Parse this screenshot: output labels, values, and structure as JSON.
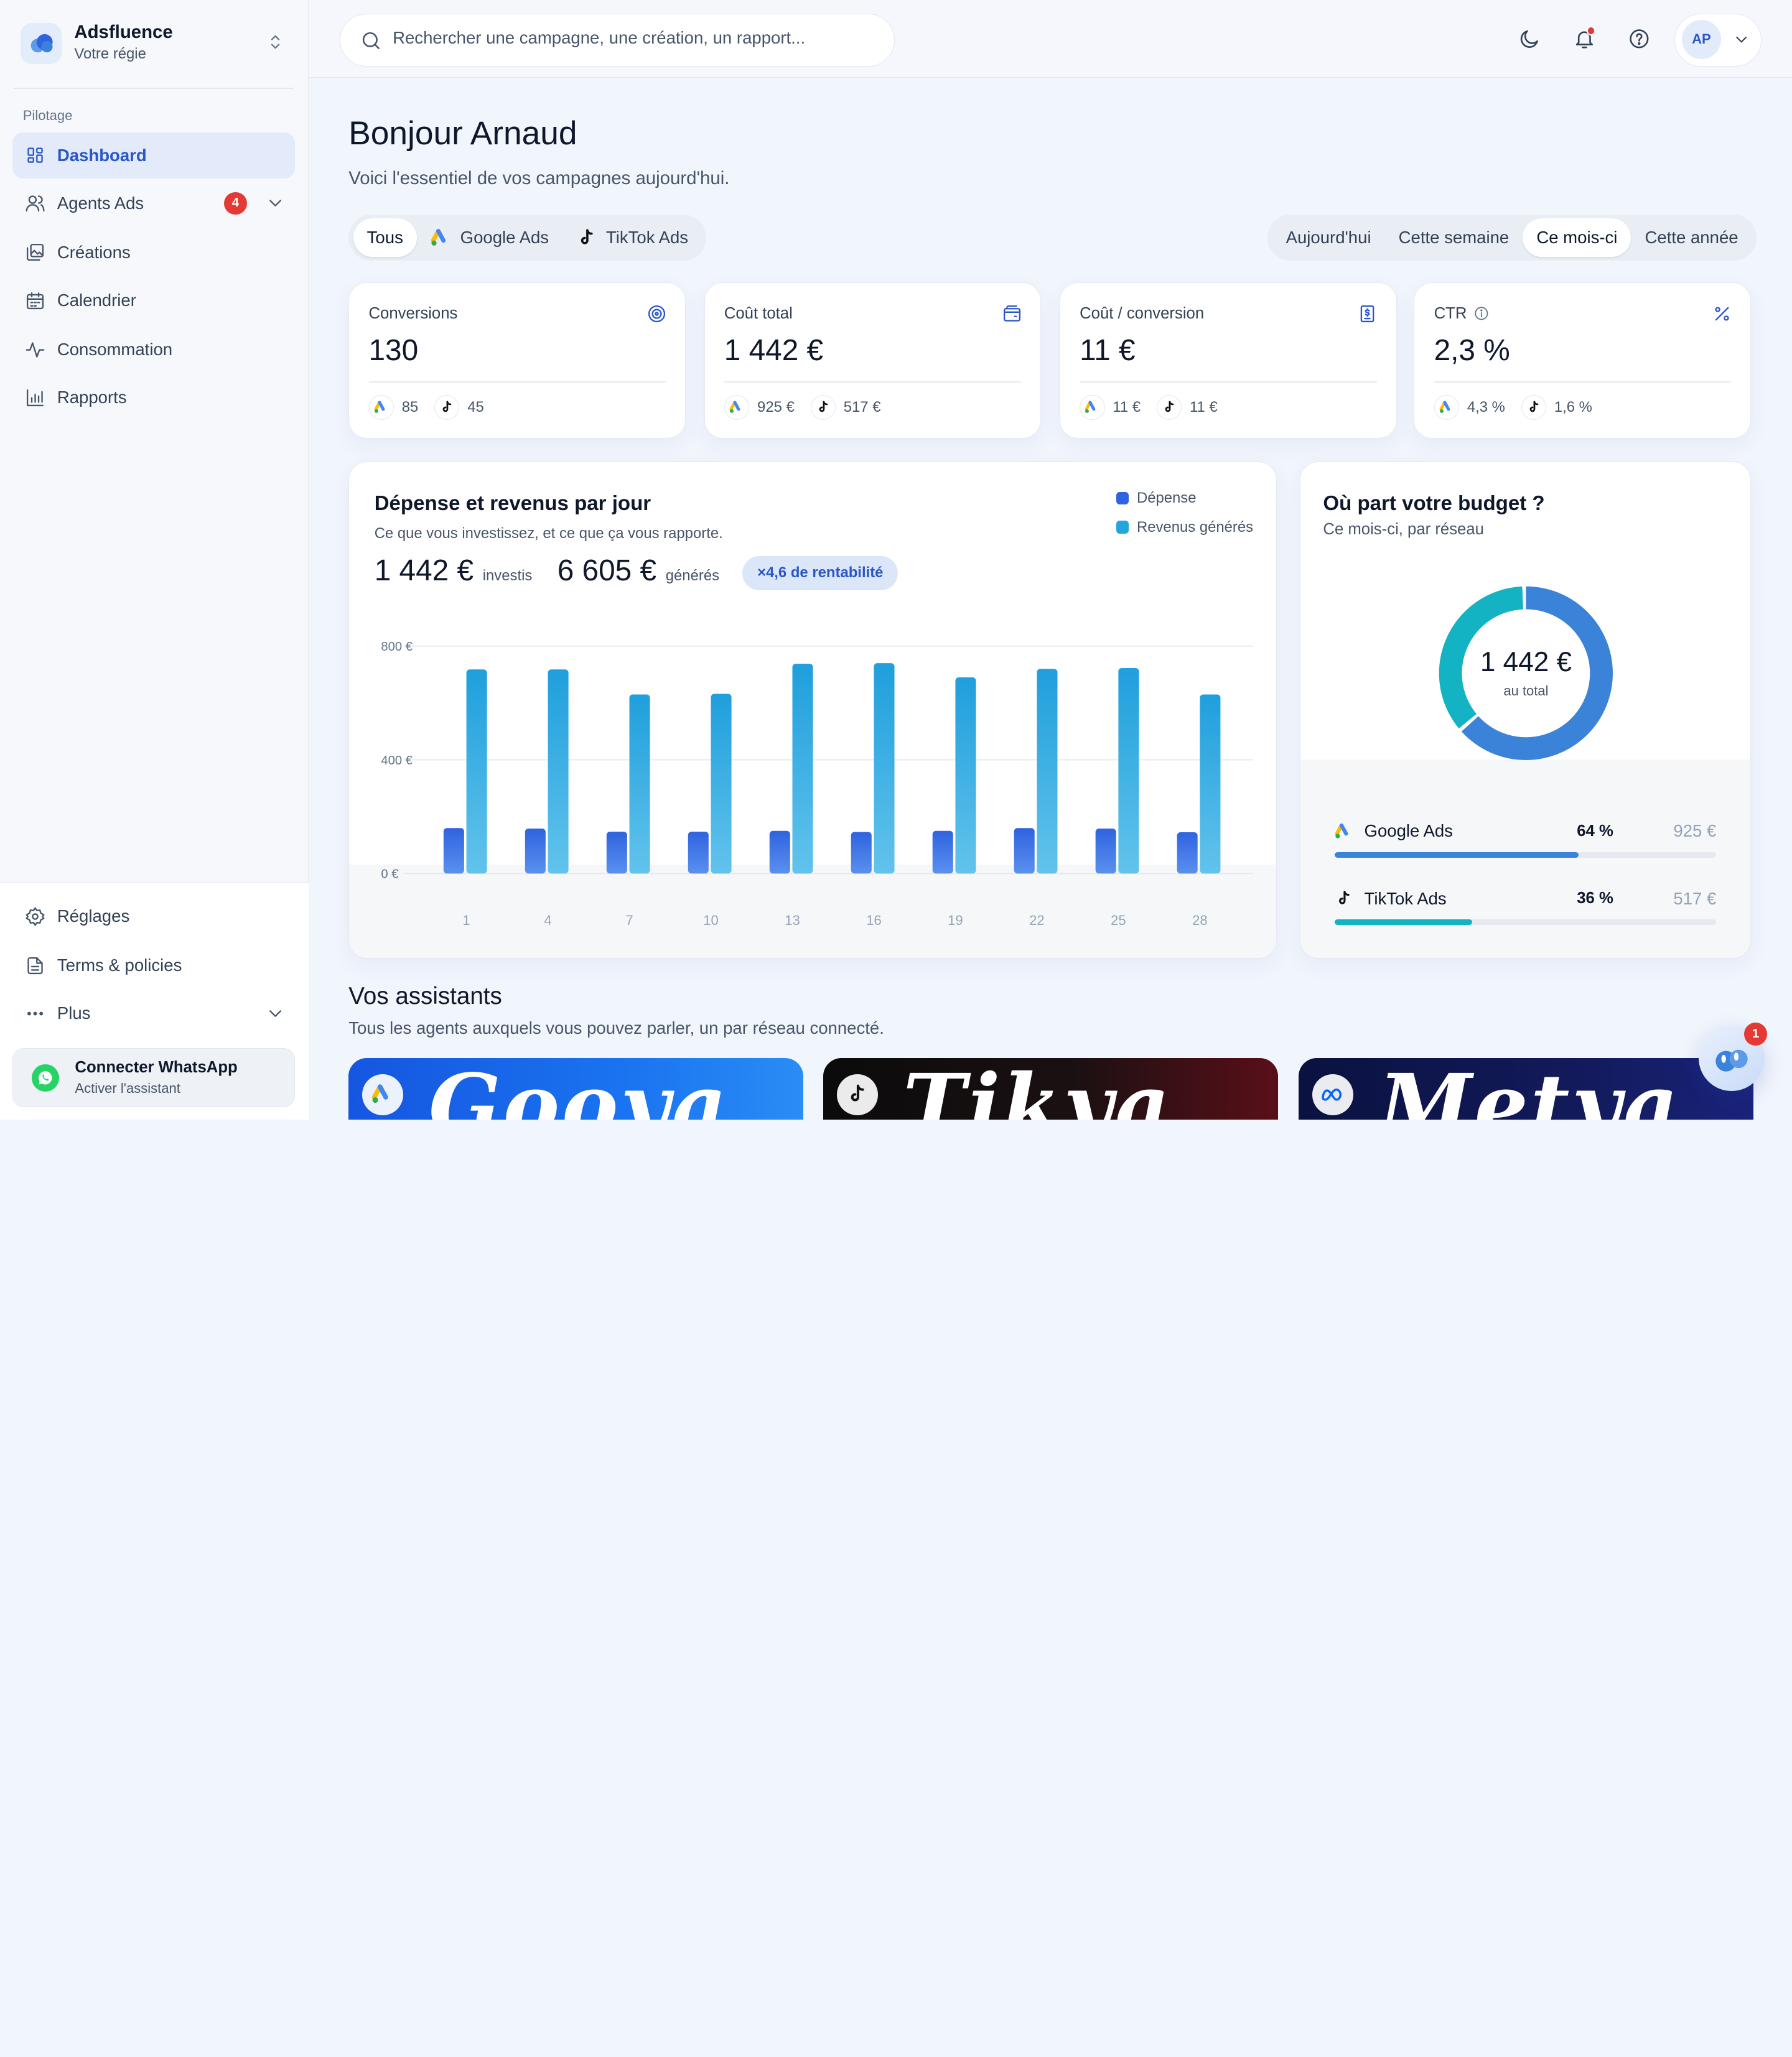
{
  "brand": {
    "name": "Adsfluence",
    "subtitle": "Votre régie"
  },
  "sidebar": {
    "section_label": "Pilotage",
    "items": [
      {
        "label": "Dashboard",
        "icon": "grid-icon",
        "active": true
      },
      {
        "label": "Agents Ads",
        "icon": "users-icon",
        "badge": "4"
      },
      {
        "label": "Créations",
        "icon": "gallery-icon"
      },
      {
        "label": "Calendrier",
        "icon": "calendar-icon"
      },
      {
        "label": "Consommation",
        "icon": "activity-icon"
      },
      {
        "label": "Rapports",
        "icon": "bar-chart-icon"
      }
    ],
    "bottom_items": [
      {
        "label": "Réglages",
        "icon": "gear-icon"
      },
      {
        "label": "Terms & policies",
        "icon": "document-icon"
      },
      {
        "label": "Plus",
        "icon": "more-icon"
      }
    ],
    "whatsapp": {
      "title": "Connecter WhatsApp",
      "subtitle": "Activer l'assistant"
    }
  },
  "topbar": {
    "search_placeholder": "Rechercher une campagne, une création, un rapport...",
    "user_initials": "AP"
  },
  "header": {
    "title": "Bonjour Arnaud",
    "subtitle": "Voici l'essentiel de vos campagnes aujourd'hui."
  },
  "network_filter": {
    "options": [
      "Tous",
      "Google Ads",
      "TikTok Ads"
    ],
    "selected": "Tous"
  },
  "period_filter": {
    "options": [
      "Aujourd'hui",
      "Cette semaine",
      "Ce mois-ci",
      "Cette année"
    ],
    "selected": "Ce mois-ci"
  },
  "kpis": [
    {
      "label": "Conversions",
      "value": "130",
      "icon": "target-icon",
      "google": "85",
      "tiktok": "45"
    },
    {
      "label": "Coût total",
      "value": "1 442 €",
      "icon": "wallet-icon",
      "google": "925 €",
      "tiktok": "517 €"
    },
    {
      "label": "Coût / conversion",
      "value": "11 €",
      "icon": "invoice-icon",
      "google": "11 €",
      "tiktok": "11 €"
    },
    {
      "label": "CTR",
      "value": "2,3 %",
      "icon": "percent-icon",
      "google": "4,3 %",
      "tiktok": "1,6 %"
    }
  ],
  "spend_chart": {
    "title": "Dépense et revenus par jour",
    "subtitle": "Ce que vous investissez, et ce que ça vous rapporte.",
    "spent": "1 442 €",
    "spent_label": "investis",
    "generated": "6 605 €",
    "generated_label": "générés",
    "roi_badge": "×4,6 de rentabilité"
  },
  "chart_data": {
    "type": "bar",
    "categories": [
      "1",
      "4",
      "7",
      "10",
      "13",
      "16",
      "19",
      "22",
      "25",
      "28"
    ],
    "series": [
      {
        "name": "Dépense",
        "color": "#2f63e0",
        "values": [
          160,
          158,
          147,
          147,
          150,
          146,
          150,
          160,
          158,
          145
        ]
      },
      {
        "name": "Revenus générés",
        "color": "#22a6dc",
        "values": [
          718,
          718,
          630,
          632,
          738,
          740,
          690,
          720,
          723,
          630
        ]
      }
    ],
    "y_ticks": [
      "800 €",
      "400 €",
      "0 €"
    ],
    "ylim": [
      0,
      800
    ],
    "grid": true,
    "legend_position": "top-right"
  },
  "budget": {
    "title": "Où part votre budget ?",
    "subtitle": "Ce mois-ci, par réseau",
    "total": "1 442 €",
    "total_caption": "au total",
    "networks": [
      {
        "name": "Google Ads",
        "percent": "64 %",
        "amount": "925 €",
        "share": 64,
        "color": "#3b82d9"
      },
      {
        "name": "TikTok Ads",
        "percent": "36 %",
        "amount": "517 €",
        "share": 36,
        "color": "#14b3c3"
      }
    ]
  },
  "assistants": {
    "title": "Vos assistants",
    "subtitle": "Tous les agents auxquels vous pouvez parler, un par réseau connecté.",
    "cards": [
      {
        "name": "Gooya",
        "network": "google-ads-icon"
      },
      {
        "name": "Tikya",
        "network": "tiktok-icon"
      },
      {
        "name": "Metya",
        "network": "meta-icon"
      }
    ]
  },
  "assistant_fab": {
    "badge": "1"
  }
}
